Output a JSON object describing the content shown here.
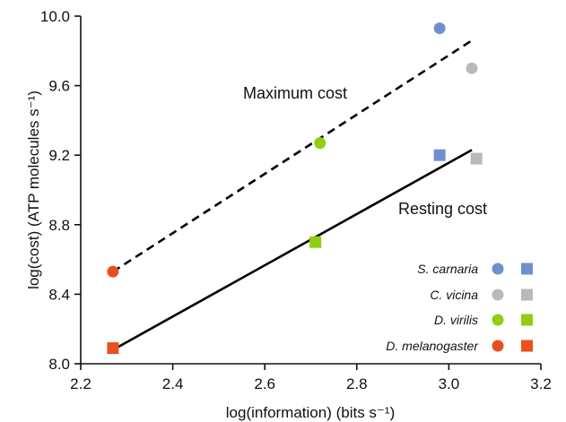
{
  "chart_data": {
    "type": "scatter",
    "xlabel": "log(information) (bits s⁻¹)",
    "ylabel": "log(cost) (ATP molecules s⁻¹)",
    "xlim": [
      2.2,
      3.2
    ],
    "ylim": [
      8.0,
      10.0
    ],
    "x_ticks": [
      "2.2",
      "2.4",
      "2.6",
      "2.8",
      "3.0",
      "3.2"
    ],
    "y_ticks": [
      "8.0",
      "8.4",
      "8.8",
      "9.2",
      "9.6",
      "10.0"
    ],
    "grid": false,
    "series": [
      {
        "name": "Maximum cost",
        "marker": "circle",
        "points": [
          {
            "species": "D. melanogaster",
            "x": 2.27,
            "y": 8.53
          },
          {
            "species": "D. virilis",
            "x": 2.72,
            "y": 9.27
          },
          {
            "species": "S. carnaria",
            "x": 2.98,
            "y": 9.93
          },
          {
            "species": "C. vicina",
            "x": 3.05,
            "y": 9.7
          }
        ],
        "fit_line": {
          "x": [
            2.27,
            3.05
          ],
          "y": [
            8.53,
            9.86
          ]
        },
        "line_style": "dashed"
      },
      {
        "name": "Resting cost",
        "marker": "square",
        "points": [
          {
            "species": "D. melanogaster",
            "x": 2.27,
            "y": 8.09
          },
          {
            "species": "D. virilis",
            "x": 2.71,
            "y": 8.7
          },
          {
            "species": "S. carnaria",
            "x": 2.98,
            "y": 9.2
          },
          {
            "species": "C. vicina",
            "x": 3.06,
            "y": 9.18
          }
        ],
        "fit_line": {
          "x": [
            2.27,
            3.05
          ],
          "y": [
            8.08,
            9.23
          ]
        },
        "line_style": "solid"
      }
    ],
    "legend": {
      "placement": "bottom-right",
      "entries": [
        {
          "species": "S. carnaria",
          "color": "#6f8fcf"
        },
        {
          "species": "C. vicina",
          "color": "#b9b9b9"
        },
        {
          "species": "D. virilis",
          "color": "#8fcf10"
        },
        {
          "species": "D. melanogaster",
          "color": "#e8501e"
        }
      ]
    }
  }
}
